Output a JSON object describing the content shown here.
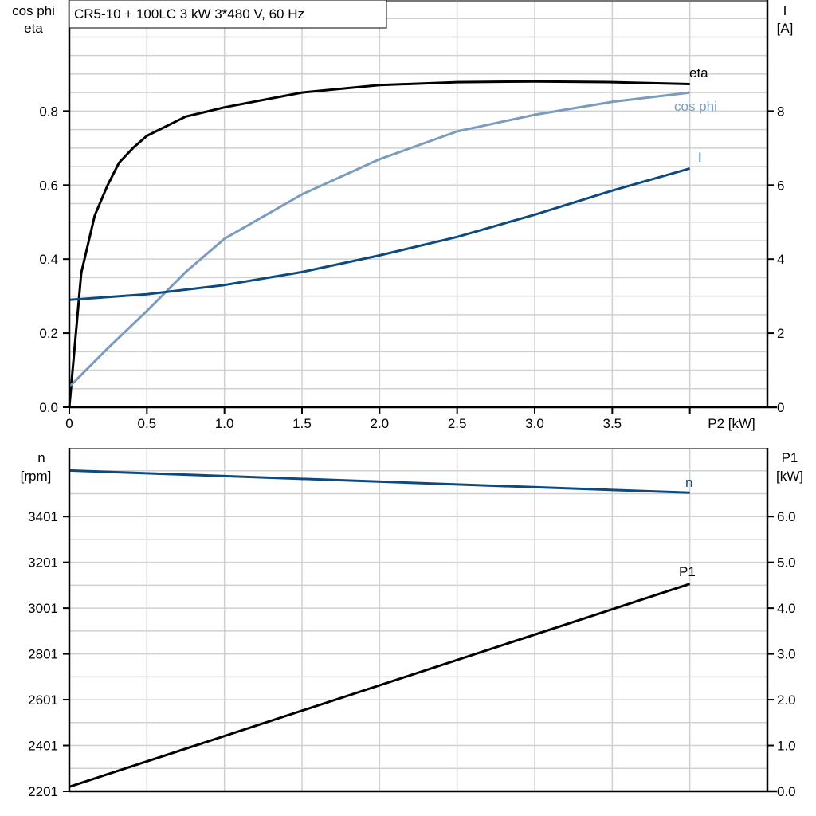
{
  "chart_data": [
    {
      "type": "line",
      "title": "CR5-10 + 100LC   3 kW   3*480 V, 60 Hz",
      "xlabel": "P2 [kW]",
      "ylabel_left": [
        "cos phi",
        "eta"
      ],
      "ylabel_right": [
        "I",
        "[A]"
      ],
      "xlim": [
        0,
        4.5
      ],
      "ylim_left": [
        0,
        1.1
      ],
      "ylim_right": [
        0,
        11
      ],
      "x_ticks": [
        "0",
        "0.5",
        "1.0",
        "1.5",
        "2.0",
        "2.5",
        "3.0",
        "3.5"
      ],
      "y_ticks_left": [
        "0.0",
        "0.2",
        "0.4",
        "0.6",
        "0.8"
      ],
      "y_ticks_right": [
        "0",
        "2",
        "4",
        "6",
        "8"
      ],
      "grid": true,
      "series": [
        {
          "name": "eta",
          "axis": "left",
          "color": "#000000",
          "x": [
            0,
            0.077,
            0.164,
            0.247,
            0.32,
            0.41,
            0.5,
            0.75,
            1.0,
            1.5,
            2.0,
            2.5,
            3.0,
            3.5,
            4.0
          ],
          "y": [
            0,
            0.363,
            0.518,
            0.6,
            0.66,
            0.7,
            0.733,
            0.785,
            0.81,
            0.85,
            0.87,
            0.878,
            0.88,
            0.878,
            0.873
          ]
        },
        {
          "name": "cos phi",
          "axis": "left",
          "color": "#7a9cbf",
          "x": [
            0,
            0.25,
            0.5,
            0.75,
            1.0,
            1.5,
            2.0,
            2.5,
            3.0,
            3.5,
            4.0
          ],
          "y": [
            0.055,
            0.16,
            0.26,
            0.365,
            0.455,
            0.575,
            0.67,
            0.745,
            0.79,
            0.825,
            0.85
          ]
        },
        {
          "name": "I",
          "axis": "right",
          "color": "#0d4a80",
          "x": [
            0,
            0.5,
            1.0,
            1.5,
            2.0,
            2.5,
            3.0,
            3.5,
            4.0
          ],
          "y": [
            2.9,
            3.05,
            3.3,
            3.65,
            4.1,
            4.6,
            5.2,
            5.85,
            6.45
          ]
        }
      ]
    },
    {
      "type": "line",
      "ylabel_left": [
        "n",
        "[rpm]"
      ],
      "ylabel_right": [
        "P1",
        "[kW]"
      ],
      "xlim": [
        0,
        4.5
      ],
      "ylim_left": [
        2201,
        3701
      ],
      "ylim_right": [
        0,
        7.5
      ],
      "y_ticks_left": [
        "2201",
        "2401",
        "2601",
        "2801",
        "3001",
        "3201",
        "3401"
      ],
      "y_ticks_right": [
        "0.0",
        "1.0",
        "2.0",
        "3.0",
        "4.0",
        "5.0",
        "6.0"
      ],
      "grid": true,
      "series": [
        {
          "name": "n",
          "axis": "left",
          "color": "#0d4a80",
          "x": [
            0,
            4.0
          ],
          "y": [
            3602,
            3505
          ]
        },
        {
          "name": "P1",
          "axis": "right",
          "color": "#000000",
          "x": [
            0,
            4.0
          ],
          "y": [
            0.1,
            4.53
          ]
        }
      ]
    }
  ]
}
